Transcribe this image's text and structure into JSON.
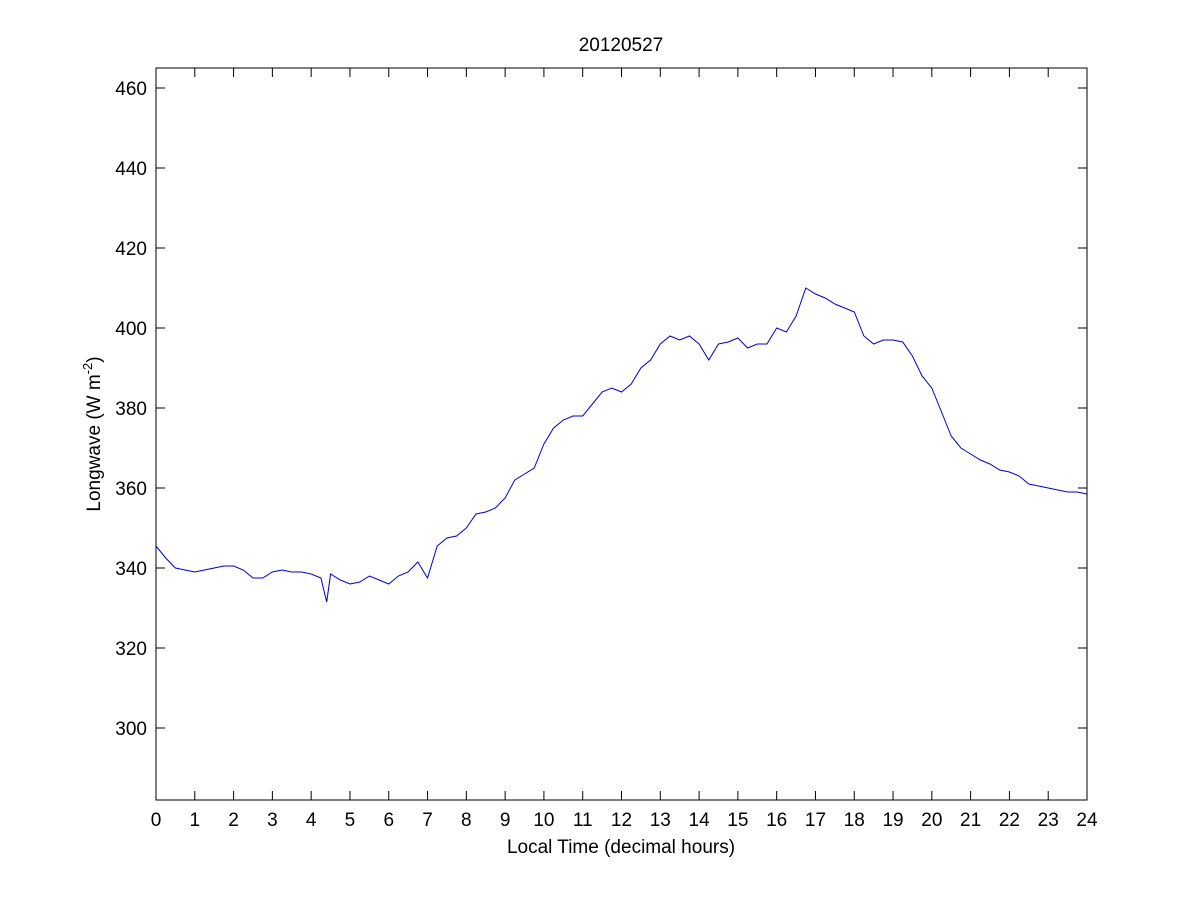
{
  "chart_data": {
    "type": "line",
    "title": "20120527",
    "xlabel": "Local Time (decimal hours)",
    "ylabel": "Longwave (W m",
    "ylabel_sup": "-2",
    "ylabel_close": ")",
    "xlim": [
      0,
      24
    ],
    "ylim": [
      282,
      465
    ],
    "xticks": [
      0,
      1,
      2,
      3,
      4,
      5,
      6,
      7,
      8,
      9,
      10,
      11,
      12,
      13,
      14,
      15,
      16,
      17,
      18,
      19,
      20,
      21,
      22,
      23,
      24
    ],
    "yticks": [
      300,
      320,
      340,
      360,
      380,
      400,
      420,
      440,
      460
    ],
    "grid": false,
    "line_color": "#0000cc",
    "series": [
      {
        "x": [
          0,
          0.25,
          0.5,
          0.75,
          1,
          1.25,
          1.5,
          1.75,
          2,
          2.25,
          2.5,
          2.75,
          3,
          3.25,
          3.5,
          3.75,
          4,
          4.25,
          4.4,
          4.5,
          4.75,
          5,
          5.25,
          5.5,
          5.75,
          6,
          6.25,
          6.5,
          6.75,
          7,
          7.25,
          7.5,
          7.75,
          8,
          8.25,
          8.5,
          8.75,
          9,
          9.25,
          9.5,
          9.75,
          10,
          10.25,
          10.5,
          10.75,
          11,
          11.25,
          11.5,
          11.75,
          12,
          12.25,
          12.5,
          12.75,
          13,
          13.25,
          13.5,
          13.75,
          14,
          14.25,
          14.5,
          14.75,
          15,
          15.25,
          15.5,
          15.75,
          16,
          16.25,
          16.5,
          16.75,
          17,
          17.25,
          17.5,
          17.75,
          18,
          18.25,
          18.5,
          18.75,
          19,
          19.25,
          19.5,
          19.75,
          20,
          20.25,
          20.5,
          20.75,
          21,
          21.25,
          21.5,
          21.75,
          22,
          22.25,
          22.5,
          22.75,
          23,
          23.25,
          23.5,
          23.75,
          24
        ],
        "values": [
          345.5,
          342.5,
          340.0,
          339.5,
          339.0,
          339.5,
          340.0,
          340.5,
          340.5,
          339.5,
          337.5,
          337.5,
          339.0,
          339.5,
          339.0,
          339.0,
          338.5,
          337.5,
          331.5,
          338.5,
          337.0,
          336.0,
          336.5,
          338.0,
          337.0,
          336.0,
          338.0,
          339.0,
          341.5,
          337.5,
          345.5,
          347.5,
          348.0,
          350.0,
          353.5,
          354.0,
          355.0,
          357.5,
          362.0,
          363.5,
          365.0,
          371.0,
          375.0,
          377.0,
          378.0,
          378.0,
          381.0,
          384.0,
          385.0,
          384.0,
          386.0,
          390.0,
          392.0,
          396.0,
          398.0,
          397.0,
          398.0,
          396.0,
          392.0,
          396.0,
          396.5,
          397.5,
          395.0,
          396.0,
          396.0,
          400.0,
          399.0,
          403.0,
          410.0,
          408.5,
          407.5,
          406.0,
          405.0,
          404.0,
          398.0,
          396.0,
          397.0,
          397.0,
          396.5,
          393.0,
          388.0,
          385.0,
          379.0,
          373.0,
          370.0,
          368.5,
          367.0,
          366.0,
          364.5,
          364.0,
          363.0,
          361.0,
          360.5,
          360.0,
          359.5,
          359.0,
          359.0,
          358.5
        ]
      }
    ]
  }
}
